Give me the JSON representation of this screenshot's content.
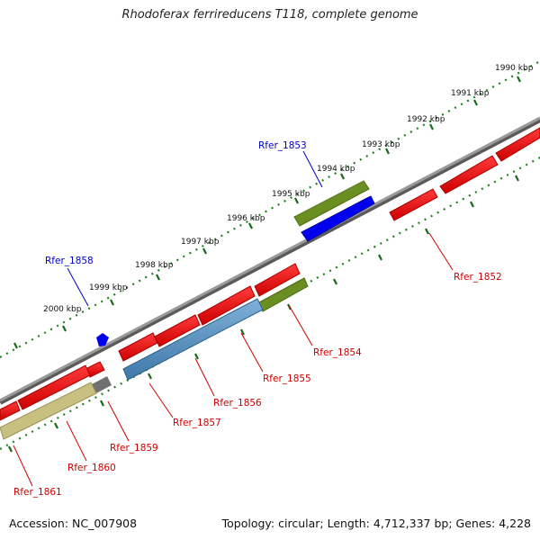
{
  "title": "Rhodoferax ferrireducens T118, complete genome",
  "footer": {
    "accession": "Accession: NC_007908",
    "summary": "Topology: circular; Length: 4,712,337 bp; Genes: 4,228"
  },
  "colors": {
    "backbone": "#808080",
    "tick_track": "#208020",
    "label_forward": "#0000cc",
    "label_reverse": "#cc0000"
  },
  "scale_ticks": [
    {
      "kbp": 1990,
      "label": "1990 kbp"
    },
    {
      "kbp": 1991,
      "label": "1991 kbp"
    },
    {
      "kbp": 1992,
      "label": "1992 kbp"
    },
    {
      "kbp": 1993,
      "label": "1993 kbp"
    },
    {
      "kbp": 1994,
      "label": "1994 kbp"
    },
    {
      "kbp": 1995,
      "label": "1995 kbp"
    },
    {
      "kbp": 1996,
      "label": "1996 kbp"
    },
    {
      "kbp": 1997,
      "label": "1997 kbp"
    },
    {
      "kbp": 1998,
      "label": "1998 kbp"
    },
    {
      "kbp": 1999,
      "label": "1999 kbp"
    },
    {
      "kbp": 2000,
      "label": "2000 kbp"
    }
  ],
  "gene_labels": [
    {
      "name": "Rfer_1853",
      "strand": "forward"
    },
    {
      "name": "Rfer_1858",
      "strand": "forward"
    },
    {
      "name": "Rfer_1852",
      "strand": "reverse"
    },
    {
      "name": "Rfer_1854",
      "strand": "reverse"
    },
    {
      "name": "Rfer_1855",
      "strand": "reverse"
    },
    {
      "name": "Rfer_1856",
      "strand": "reverse"
    },
    {
      "name": "Rfer_1857",
      "strand": "reverse"
    },
    {
      "name": "Rfer_1859",
      "strand": "reverse"
    },
    {
      "name": "Rfer_1860",
      "strand": "reverse"
    },
    {
      "name": "Rfer_1861",
      "strand": "reverse"
    }
  ]
}
